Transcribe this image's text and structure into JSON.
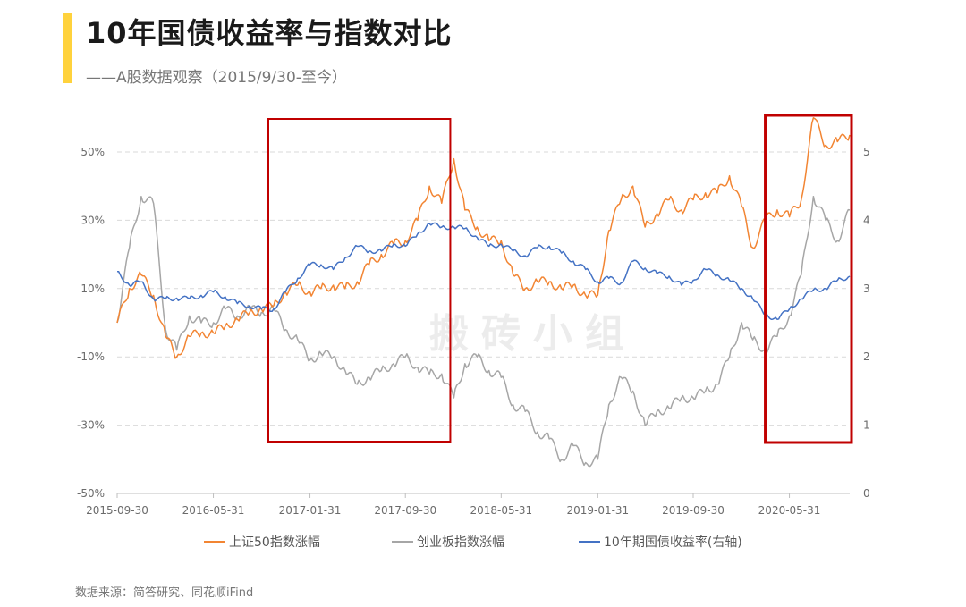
{
  "title": "10年国债收益率与指数对比",
  "subtitle": "——A股数据观察（2015/9/30-至今）",
  "source": "数据来源：简答研究、同花顺iFind",
  "watermark": "搬砖小组",
  "colors": {
    "sz50": "#F28533",
    "cyb": "#A6A6A6",
    "bond": "#4472C4",
    "highlight": "#C00000",
    "accent": "#FFD23C"
  },
  "chart_data": {
    "type": "line",
    "title": "",
    "xlabel": "",
    "ylabel": "",
    "grid": true,
    "legend_position": "bottom",
    "x_ticks": [
      "2015-09-30",
      "2016-05-31",
      "2017-01-31",
      "2017-09-30",
      "2018-05-31",
      "2019-01-31",
      "2019-09-30",
      "2020-05-31"
    ],
    "y_left": {
      "ticks": [
        "50%",
        "30%",
        "10%",
        "-10%",
        "-30%",
        "-50%"
      ],
      "range": [
        -50,
        50
      ],
      "unit": "%"
    },
    "y_right": {
      "ticks": [
        "5",
        "4",
        "3",
        "2",
        "1",
        "0"
      ],
      "range": [
        0,
        5
      ]
    },
    "series": [
      {
        "name": "上证50指数涨幅",
        "axis": "left",
        "points": [
          [
            "2015-09-30",
            0
          ],
          [
            "2015-10-31",
            10
          ],
          [
            "2015-11-30",
            14
          ],
          [
            "2015-12-31",
            8
          ],
          [
            "2016-01-31",
            -4
          ],
          [
            "2016-02-28",
            -10
          ],
          [
            "2016-03-31",
            -4
          ],
          [
            "2016-04-30",
            -3
          ],
          [
            "2016-05-31",
            -3
          ],
          [
            "2016-06-30",
            -1
          ],
          [
            "2016-07-31",
            1
          ],
          [
            "2016-08-31",
            3
          ],
          [
            "2016-09-30",
            4
          ],
          [
            "2016-10-31",
            5
          ],
          [
            "2016-11-30",
            9
          ],
          [
            "2016-12-31",
            11
          ],
          [
            "2017-01-31",
            9
          ],
          [
            "2017-02-28",
            10
          ],
          [
            "2017-03-31",
            11
          ],
          [
            "2017-04-30",
            10
          ],
          [
            "2017-05-31",
            12
          ],
          [
            "2017-06-30",
            17
          ],
          [
            "2017-07-31",
            20
          ],
          [
            "2017-08-31",
            23
          ],
          [
            "2017-09-30",
            24
          ],
          [
            "2017-10-31",
            30
          ],
          [
            "2017-11-30",
            40
          ],
          [
            "2017-12-31",
            35
          ],
          [
            "2018-01-31",
            48
          ],
          [
            "2018-02-28",
            33
          ],
          [
            "2018-03-31",
            28
          ],
          [
            "2018-04-30",
            24
          ],
          [
            "2018-05-31",
            24
          ],
          [
            "2018-06-30",
            14
          ],
          [
            "2018-07-31",
            10
          ],
          [
            "2018-08-31",
            12
          ],
          [
            "2018-09-30",
            12
          ],
          [
            "2018-10-31",
            10
          ],
          [
            "2018-11-30",
            11
          ],
          [
            "2018-12-31",
            8
          ],
          [
            "2019-01-31",
            8
          ],
          [
            "2019-02-28",
            27
          ],
          [
            "2019-03-31",
            36
          ],
          [
            "2019-04-30",
            40
          ],
          [
            "2019-05-31",
            28
          ],
          [
            "2019-06-30",
            32
          ],
          [
            "2019-07-31",
            36
          ],
          [
            "2019-08-31",
            33
          ],
          [
            "2019-09-30",
            36
          ],
          [
            "2019-10-31",
            38
          ],
          [
            "2019-11-30",
            38
          ],
          [
            "2019-12-31",
            43
          ],
          [
            "2020-01-31",
            34
          ],
          [
            "2020-02-28",
            22
          ],
          [
            "2020-03-31",
            30
          ],
          [
            "2020-04-30",
            33
          ],
          [
            "2020-05-31",
            31
          ],
          [
            "2020-06-30",
            36
          ],
          [
            "2020-07-31",
            60
          ],
          [
            "2020-08-31",
            52
          ],
          [
            "2020-09-30",
            53
          ],
          [
            "2020-10-31",
            55
          ]
        ]
      },
      {
        "name": "创业板指数涨幅",
        "axis": "left",
        "points": [
          [
            "2015-09-30",
            0
          ],
          [
            "2015-10-31",
            22
          ],
          [
            "2015-11-30",
            37
          ],
          [
            "2015-12-31",
            35
          ],
          [
            "2016-01-31",
            -2
          ],
          [
            "2016-02-28",
            -8
          ],
          [
            "2016-03-31",
            2
          ],
          [
            "2016-04-30",
            0
          ],
          [
            "2016-05-31",
            0
          ],
          [
            "2016-06-30",
            4
          ],
          [
            "2016-07-31",
            2
          ],
          [
            "2016-08-31",
            4
          ],
          [
            "2016-09-30",
            3
          ],
          [
            "2016-10-31",
            4
          ],
          [
            "2016-11-30",
            -2
          ],
          [
            "2016-12-31",
            -5
          ],
          [
            "2017-01-31",
            -11
          ],
          [
            "2017-02-28",
            -9
          ],
          [
            "2017-03-31",
            -10
          ],
          [
            "2017-04-30",
            -14
          ],
          [
            "2017-05-31",
            -18
          ],
          [
            "2017-06-30",
            -16
          ],
          [
            "2017-07-31",
            -14
          ],
          [
            "2017-08-31",
            -12
          ],
          [
            "2017-09-30",
            -10
          ],
          [
            "2017-10-31",
            -13
          ],
          [
            "2017-11-30",
            -15
          ],
          [
            "2017-12-31",
            -15
          ],
          [
            "2018-01-31",
            -22
          ],
          [
            "2018-02-28",
            -12
          ],
          [
            "2018-03-31",
            -10
          ],
          [
            "2018-04-30",
            -14
          ],
          [
            "2018-05-31",
            -16
          ],
          [
            "2018-06-30",
            -24
          ],
          [
            "2018-07-31",
            -26
          ],
          [
            "2018-08-31",
            -32
          ],
          [
            "2018-09-30",
            -34
          ],
          [
            "2018-10-31",
            -40
          ],
          [
            "2018-11-30",
            -36
          ],
          [
            "2018-12-31",
            -41
          ],
          [
            "2019-01-31",
            -40
          ],
          [
            "2019-02-28",
            -24
          ],
          [
            "2019-03-31",
            -16
          ],
          [
            "2019-04-30",
            -20
          ],
          [
            "2019-05-31",
            -30
          ],
          [
            "2019-06-30",
            -26
          ],
          [
            "2019-07-31",
            -25
          ],
          [
            "2019-08-31",
            -22
          ],
          [
            "2019-09-30",
            -22
          ],
          [
            "2019-10-31",
            -20
          ],
          [
            "2019-11-30",
            -18
          ],
          [
            "2019-12-31",
            -10
          ],
          [
            "2020-01-31",
            0
          ],
          [
            "2020-02-28",
            -5
          ],
          [
            "2020-03-31",
            -8
          ],
          [
            "2020-04-30",
            -4
          ],
          [
            "2020-05-31",
            2
          ],
          [
            "2020-06-30",
            14
          ],
          [
            "2020-07-31",
            37
          ],
          [
            "2020-08-31",
            30
          ],
          [
            "2020-09-30",
            24
          ],
          [
            "2020-10-31",
            33
          ]
        ]
      },
      {
        "name": "10年期国债收益率(右轴)",
        "axis": "right",
        "points": [
          [
            "2015-09-30",
            3.25
          ],
          [
            "2015-10-31",
            3.05
          ],
          [
            "2015-11-30",
            3.1
          ],
          [
            "2015-12-31",
            2.85
          ],
          [
            "2016-01-31",
            2.85
          ],
          [
            "2016-02-28",
            2.86
          ],
          [
            "2016-03-31",
            2.85
          ],
          [
            "2016-04-30",
            2.9
          ],
          [
            "2016-05-31",
            2.95
          ],
          [
            "2016-06-30",
            2.88
          ],
          [
            "2016-07-31",
            2.78
          ],
          [
            "2016-08-31",
            2.75
          ],
          [
            "2016-09-30",
            2.7
          ],
          [
            "2016-10-31",
            2.7
          ],
          [
            "2016-11-30",
            2.95
          ],
          [
            "2016-12-31",
            3.15
          ],
          [
            "2017-01-31",
            3.35
          ],
          [
            "2017-02-28",
            3.35
          ],
          [
            "2017-03-31",
            3.28
          ],
          [
            "2017-04-30",
            3.45
          ],
          [
            "2017-05-31",
            3.62
          ],
          [
            "2017-06-30",
            3.55
          ],
          [
            "2017-07-31",
            3.55
          ],
          [
            "2017-08-31",
            3.65
          ],
          [
            "2017-09-30",
            3.62
          ],
          [
            "2017-10-31",
            3.8
          ],
          [
            "2017-11-30",
            3.95
          ],
          [
            "2017-12-31",
            3.9
          ],
          [
            "2018-01-31",
            3.9
          ],
          [
            "2018-02-28",
            3.88
          ],
          [
            "2018-03-31",
            3.75
          ],
          [
            "2018-04-30",
            3.62
          ],
          [
            "2018-05-31",
            3.65
          ],
          [
            "2018-06-30",
            3.55
          ],
          [
            "2018-07-31",
            3.48
          ],
          [
            "2018-08-31",
            3.6
          ],
          [
            "2018-09-30",
            3.62
          ],
          [
            "2018-10-31",
            3.52
          ],
          [
            "2018-11-30",
            3.4
          ],
          [
            "2018-12-31",
            3.28
          ],
          [
            "2019-01-31",
            3.1
          ],
          [
            "2019-02-28",
            3.15
          ],
          [
            "2019-03-31",
            3.08
          ],
          [
            "2019-04-30",
            3.4
          ],
          [
            "2019-05-31",
            3.3
          ],
          [
            "2019-06-30",
            3.22
          ],
          [
            "2019-07-31",
            3.18
          ],
          [
            "2019-08-31",
            3.05
          ],
          [
            "2019-09-30",
            3.12
          ],
          [
            "2019-10-31",
            3.28
          ],
          [
            "2019-11-30",
            3.2
          ],
          [
            "2019-12-31",
            3.12
          ],
          [
            "2020-01-31",
            3.0
          ],
          [
            "2020-02-28",
            2.85
          ],
          [
            "2020-03-31",
            2.62
          ],
          [
            "2020-04-30",
            2.55
          ],
          [
            "2020-05-31",
            2.7
          ],
          [
            "2020-06-30",
            2.85
          ],
          [
            "2020-07-31",
            2.98
          ],
          [
            "2020-08-31",
            3.0
          ],
          [
            "2020-09-30",
            3.12
          ],
          [
            "2020-10-31",
            3.18
          ]
        ]
      }
    ],
    "highlights": [
      {
        "from": "2016-10-31",
        "to": "2018-01-31"
      },
      {
        "from": "2020-05-31",
        "to": "2020-10-31"
      }
    ]
  }
}
